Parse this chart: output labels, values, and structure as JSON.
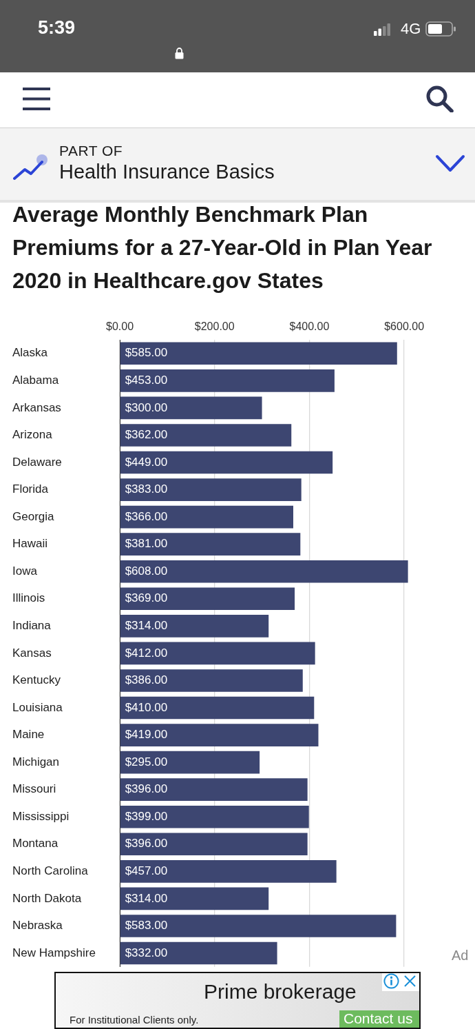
{
  "chart_data": {
    "type": "bar",
    "orientation": "horizontal",
    "title": "Average Monthly Benchmark Plan Premiums for a 27-Year-Old in Plan Year 2020 in Healthcare.gov States",
    "categories": [
      "Alaska",
      "Alabama",
      "Arkansas",
      "Arizona",
      "Delaware",
      "Florida",
      "Georgia",
      "Hawaii",
      "Iowa",
      "Illinois",
      "Indiana",
      "Kansas",
      "Kentucky",
      "Louisiana",
      "Maine",
      "Michigan",
      "Missouri",
      "Mississippi",
      "Montana",
      "North Carolina",
      "North Dakota",
      "Nebraska",
      "New Hampshire"
    ],
    "values": [
      585,
      453,
      300,
      362,
      449,
      383,
      366,
      381,
      608,
      369,
      314,
      412,
      386,
      410,
      419,
      295,
      396,
      399,
      396,
      457,
      314,
      583,
      332
    ],
    "value_labels": [
      "$585.00",
      "$453.00",
      "$300.00",
      "$362.00",
      "$449.00",
      "$383.00",
      "$366.00",
      "$381.00",
      "$608.00",
      "$369.00",
      "$314.00",
      "$412.00",
      "$386.00",
      "$410.00",
      "$419.00",
      "$295.00",
      "$396.00",
      "$399.00",
      "$396.00",
      "$457.00",
      "$314.00",
      "$583.00",
      "$332.00"
    ],
    "color": "#3d4671",
    "xlim": [
      0,
      610
    ],
    "xticks": [
      {
        "value": 0,
        "label": "$0.00"
      },
      {
        "value": 200,
        "label": "$200.00"
      },
      {
        "value": 400,
        "label": "$400.00"
      },
      {
        "value": 600,
        "label": "$600.00"
      }
    ],
    "grid": "x",
    "annotations": [
      "5:39",
      "4G",
      "PART OF",
      "Health Insurance Basics",
      "Ad",
      "Prime brokerage",
      "For Institutional Clients only.",
      "Contact us"
    ]
  }
}
